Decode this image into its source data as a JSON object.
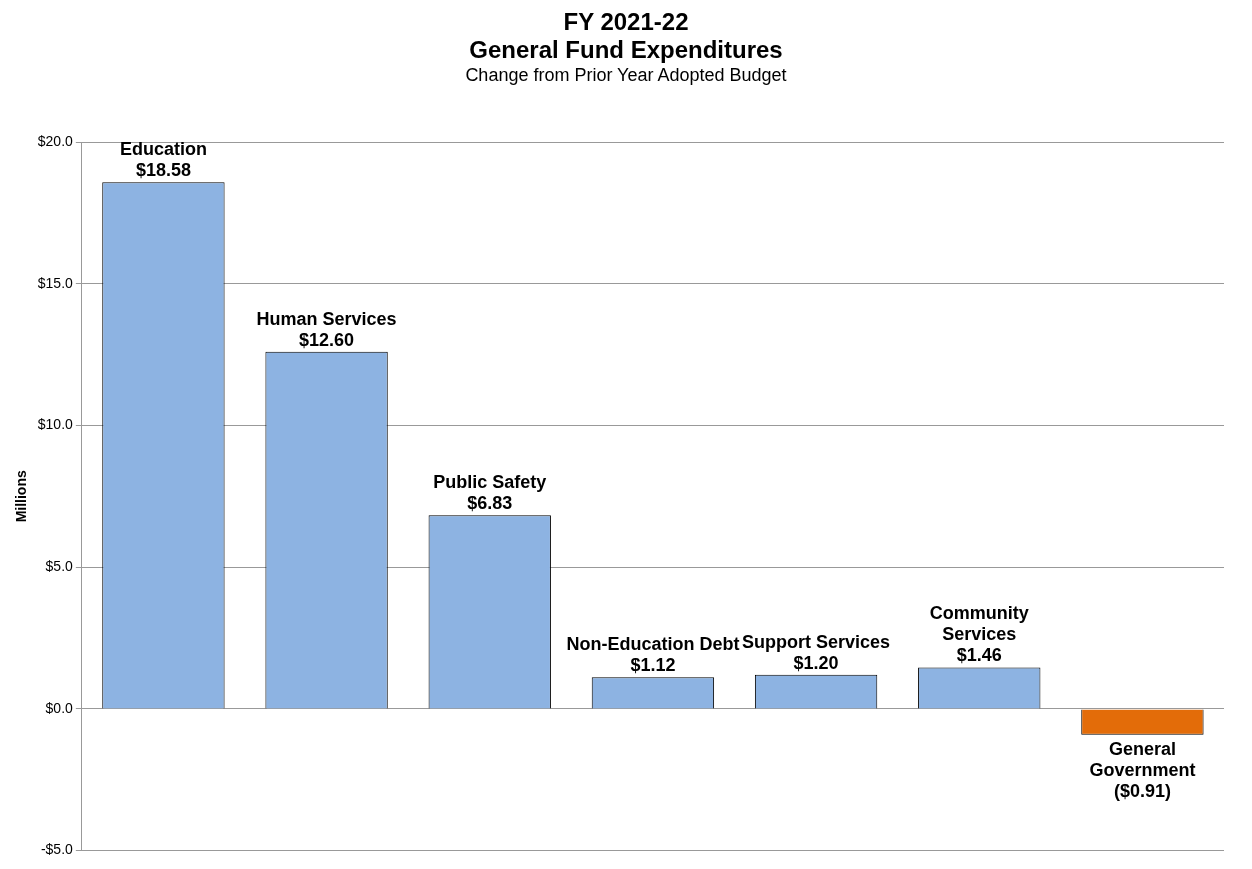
{
  "chart_data": {
    "type": "bar",
    "title": "FY 2021-22\nGeneral Fund Expenditures",
    "subtitle": "Change from Prior Year Adopted Budget",
    "ylabel": "Millions",
    "categories": [
      "Education",
      "Human Services",
      "Public Safety",
      "Non-Education Debt",
      "Support Services",
      "Community Services",
      "General Government"
    ],
    "values": [
      18.58,
      12.6,
      6.83,
      1.12,
      1.2,
      1.46,
      -0.91
    ],
    "value_labels": [
      "$18.58",
      "$12.60",
      "$6.83",
      "$1.12",
      "$1.20",
      "$1.46",
      "($0.91)"
    ],
    "colors": [
      "#8db3e2",
      "#8db3e2",
      "#8db3e2",
      "#8db3e2",
      "#8db3e2",
      "#8db3e2",
      "#e36c09"
    ],
    "ylim": [
      -5,
      20
    ],
    "yticks": [
      {
        "value": -5,
        "label": "-$5.0"
      },
      {
        "value": 0,
        "label": "$0.0"
      },
      {
        "value": 5,
        "label": "$5.0"
      },
      {
        "value": 10,
        "label": "$10.0"
      },
      {
        "value": 15,
        "label": "$15.0"
      },
      {
        "value": 20,
        "label": "$20.0"
      }
    ],
    "grid": "y"
  }
}
